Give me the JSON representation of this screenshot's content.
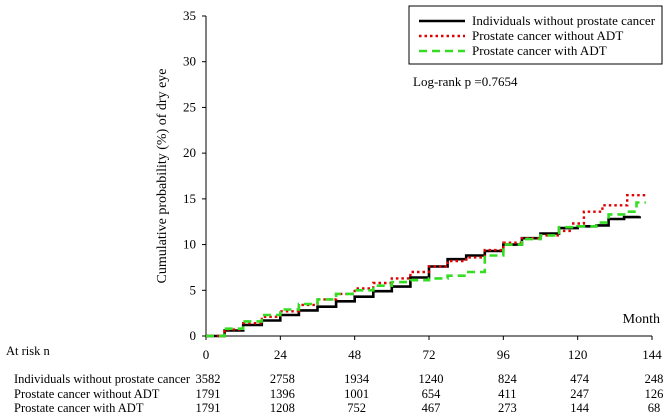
{
  "chart_data": {
    "type": "line",
    "title": "",
    "xlabel": "Month",
    "ylabel": "Cumulative probability (%) of dry eye",
    "xlim": [
      0,
      144
    ],
    "ylim": [
      0,
      35
    ],
    "x_ticks": [
      "0",
      "24",
      "48",
      "72",
      "96",
      "120",
      "144"
    ],
    "y_ticks": [
      "0",
      "5",
      "10",
      "15",
      "20",
      "25",
      "30",
      "35"
    ],
    "annotation": "Log-rank p =0.7654",
    "series": [
      {
        "name": "Individuals without prostate cancer",
        "color": "#000000",
        "dash": "solid",
        "points": [
          [
            0,
            0
          ],
          [
            6,
            0.6
          ],
          [
            12,
            1.2
          ],
          [
            18,
            1.7
          ],
          [
            24,
            2.3
          ],
          [
            30,
            2.8
          ],
          [
            36,
            3.2
          ],
          [
            42,
            3.8
          ],
          [
            48,
            4.3
          ],
          [
            54,
            4.9
          ],
          [
            60,
            5.4
          ],
          [
            66,
            6.4
          ],
          [
            72,
            7.6
          ],
          [
            78,
            8.4
          ],
          [
            84,
            8.8
          ],
          [
            90,
            9.3
          ],
          [
            96,
            10.0
          ],
          [
            102,
            10.7
          ],
          [
            108,
            11.2
          ],
          [
            114,
            11.8
          ],
          [
            120,
            12.0
          ],
          [
            126,
            12.1
          ],
          [
            130,
            12.8
          ],
          [
            135,
            13.0
          ],
          [
            140,
            13.1
          ]
        ]
      },
      {
        "name": "Prostate cancer without ADT",
        "color": "#e00000",
        "dash": "dotted",
        "points": [
          [
            0,
            0
          ],
          [
            6,
            0.7
          ],
          [
            12,
            1.4
          ],
          [
            18,
            2.1
          ],
          [
            24,
            2.7
          ],
          [
            30,
            3.4
          ],
          [
            36,
            4.0
          ],
          [
            42,
            4.6
          ],
          [
            48,
            5.2
          ],
          [
            54,
            5.8
          ],
          [
            60,
            6.3
          ],
          [
            66,
            7.0
          ],
          [
            72,
            7.6
          ],
          [
            78,
            8.2
          ],
          [
            84,
            8.6
          ],
          [
            90,
            9.4
          ],
          [
            96,
            10.2
          ],
          [
            102,
            10.7
          ],
          [
            108,
            11.0
          ],
          [
            114,
            11.5
          ],
          [
            118,
            12.3
          ],
          [
            122,
            13.6
          ],
          [
            128,
            14.3
          ],
          [
            136,
            15.4
          ],
          [
            142,
            15.4
          ]
        ]
      },
      {
        "name": "Prostate cancer with ADT",
        "color": "#33dd22",
        "dash": "dashed",
        "points": [
          [
            0,
            0
          ],
          [
            6,
            0.8
          ],
          [
            12,
            1.6
          ],
          [
            18,
            2.3
          ],
          [
            24,
            2.9
          ],
          [
            30,
            3.5
          ],
          [
            36,
            4.0
          ],
          [
            42,
            4.6
          ],
          [
            48,
            5.0
          ],
          [
            54,
            5.5
          ],
          [
            60,
            5.9
          ],
          [
            66,
            6.1
          ],
          [
            72,
            6.3
          ],
          [
            78,
            6.6
          ],
          [
            84,
            7.0
          ],
          [
            90,
            8.8
          ],
          [
            96,
            10.0
          ],
          [
            102,
            10.6
          ],
          [
            108,
            11.0
          ],
          [
            114,
            11.9
          ],
          [
            120,
            12.0
          ],
          [
            126,
            12.4
          ],
          [
            130,
            13.3
          ],
          [
            136,
            13.6
          ],
          [
            139,
            14.6
          ],
          [
            142,
            14.6
          ]
        ]
      }
    ],
    "risk_table": {
      "header": "At risk n",
      "rows": [
        {
          "label": "Individuals without prostate cancer",
          "values": [
            "3582",
            "2758",
            "1934",
            "1240",
            "824",
            "474",
            "248"
          ]
        },
        {
          "label": "Prostate cancer without ADT",
          "values": [
            "1791",
            "1396",
            "1001",
            "654",
            "411",
            "247",
            "126"
          ]
        },
        {
          "label": "Prostate cancer with ADT",
          "values": [
            "1791",
            "1208",
            "752",
            "467",
            "273",
            "144",
            "68"
          ]
        }
      ]
    }
  }
}
